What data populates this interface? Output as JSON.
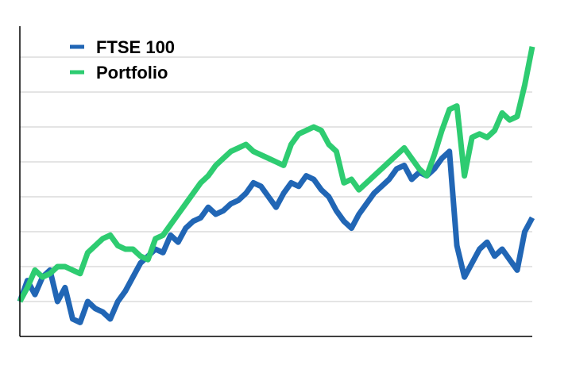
{
  "chart_data": {
    "type": "line",
    "title": "",
    "xlabel": "",
    "ylabel": "",
    "grid": true,
    "legend_position": "top-left",
    "y_gridlines": 8,
    "series": [
      {
        "name": "FTSE 100",
        "color": "#2166b5",
        "values": [
          0.0,
          0.6,
          0.2,
          0.7,
          0.9,
          0.0,
          0.4,
          -0.5,
          -0.6,
          0.0,
          -0.2,
          -0.3,
          -0.5,
          0.0,
          0.3,
          0.7,
          1.1,
          1.3,
          1.5,
          1.4,
          1.9,
          1.7,
          2.1,
          2.3,
          2.4,
          2.7,
          2.5,
          2.6,
          2.8,
          2.9,
          3.1,
          3.4,
          3.3,
          3.0,
          2.7,
          3.1,
          3.4,
          3.3,
          3.6,
          3.5,
          3.2,
          3.0,
          2.6,
          2.3,
          2.1,
          2.5,
          2.8,
          3.1,
          3.3,
          3.5,
          3.8,
          3.9,
          3.5,
          3.7,
          3.6,
          3.8,
          4.1,
          4.3,
          1.6,
          0.7,
          1.1,
          1.5,
          1.7,
          1.3,
          1.5,
          1.2,
          0.9,
          2.0,
          2.4
        ]
      },
      {
        "name": "Portfolio",
        "color": "#2ecc71",
        "values": [
          0.0,
          0.4,
          0.9,
          0.7,
          0.8,
          1.0,
          1.0,
          0.9,
          0.8,
          1.4,
          1.6,
          1.8,
          1.9,
          1.6,
          1.5,
          1.5,
          1.3,
          1.2,
          1.8,
          1.9,
          2.2,
          2.5,
          2.8,
          3.1,
          3.4,
          3.6,
          3.9,
          4.1,
          4.3,
          4.4,
          4.5,
          4.3,
          4.2,
          4.1,
          4.0,
          3.9,
          4.5,
          4.8,
          4.9,
          5.0,
          4.9,
          4.5,
          4.3,
          3.4,
          3.5,
          3.2,
          3.4,
          3.6,
          3.8,
          4.0,
          4.2,
          4.4,
          4.1,
          3.8,
          3.6,
          4.2,
          4.9,
          5.5,
          5.6,
          3.6,
          4.7,
          4.8,
          4.7,
          4.9,
          5.4,
          5.2,
          5.3,
          6.2,
          7.3
        ]
      }
    ]
  }
}
